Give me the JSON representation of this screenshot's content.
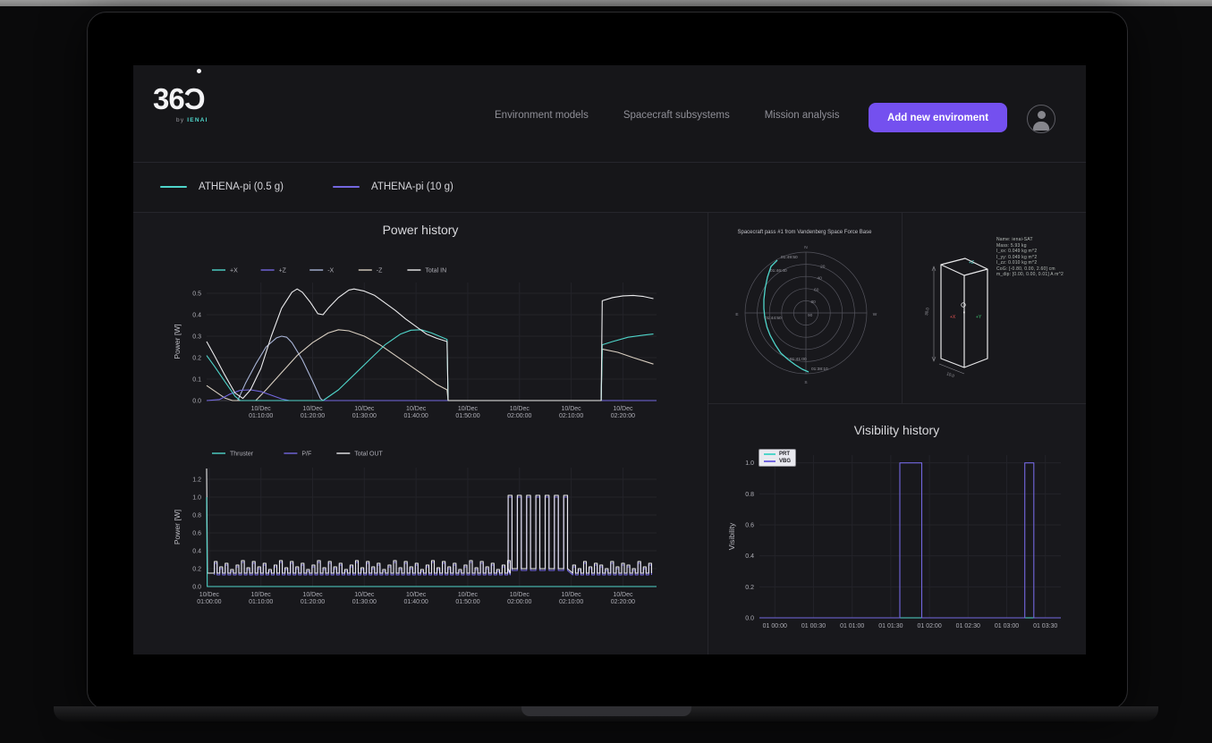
{
  "header": {
    "logo": {
      "text": "36Ɔ",
      "byline_prefix": "by",
      "byline_brand": "IENAI"
    },
    "nav": [
      {
        "label": "Environment models"
      },
      {
        "label": "Spacecraft subsystems"
      },
      {
        "label": "Mission analysis"
      }
    ],
    "add_button_label": "Add new enviroment"
  },
  "colors": {
    "accent_teal": "#4fd5ca",
    "accent_purple": "#7367e0",
    "button_purple": "#7450ef"
  },
  "series_legend": [
    {
      "label": "ATHENA-pi (0.5 g)",
      "color": "#4fd5ca"
    },
    {
      "label": "ATHENA-pi (10 g)",
      "color": "#7367e0"
    }
  ],
  "spacecraft_info": [
    "Name: ienai-SAT",
    "Mass: 5.93 kg",
    "I_xx: 0.049 kg m^2",
    "I_yy: 0.049 kg m^2",
    "I_zz: 0.010 kg m^2",
    "CoG: [-0.80, 0.00, 2.60] cm",
    "m_dip: [0.00, 0.00, 0.01] A m^2"
  ],
  "box_view": {
    "axis_z": "+Z",
    "axis_x": "+X",
    "axis_y": "+Y",
    "dim_height": "30.0",
    "dim_width": "10.0"
  },
  "chart_data": [
    {
      "id": "power_in",
      "type": "line",
      "title": "Power history",
      "ylabel": "Power [W]",
      "xlim": [
        -0.5,
        86.5
      ],
      "ylim": [
        0,
        0.55
      ],
      "yticks": [
        0,
        0.1,
        0.2,
        0.3,
        0.4,
        0.5
      ],
      "xticks": [
        {
          "v": 10,
          "label": [
            "10/Dec",
            "01:10:00"
          ]
        },
        {
          "v": 20,
          "label": [
            "10/Dec",
            "01:20:00"
          ]
        },
        {
          "v": 30,
          "label": [
            "10/Dec",
            "01:30:00"
          ]
        },
        {
          "v": 40,
          "label": [
            "10/Dec",
            "01:40:00"
          ]
        },
        {
          "v": 50,
          "label": [
            "10/Dec",
            "01:50:00"
          ]
        },
        {
          "v": 60,
          "label": [
            "10/Dec",
            "02:00:00"
          ]
        },
        {
          "v": 70,
          "label": [
            "10/Dec",
            "02:10:00"
          ]
        },
        {
          "v": 80,
          "label": [
            "10/Dec",
            "02:20:00"
          ]
        }
      ],
      "legend": [
        {
          "label": "+X",
          "color": "#4fd5ca"
        },
        {
          "label": "+Z",
          "color": "#7367e0"
        },
        {
          "label": "-X",
          "color": "#a8b4d6"
        },
        {
          "label": "-Z",
          "color": "#d8cec0"
        },
        {
          "label": "Total IN",
          "color": "#ebebed"
        }
      ],
      "series": [
        {
          "name": "-X",
          "color": "#a8b4d6",
          "points": [
            [
              5.5,
              0
            ],
            [
              7,
              0.08
            ],
            [
              9,
              0.17
            ],
            [
              11,
              0.25
            ],
            [
              13,
              0.292
            ],
            [
              14,
              0.3
            ],
            [
              15,
              0.295
            ],
            [
              16,
              0.27
            ],
            [
              18,
              0.19
            ],
            [
              20,
              0.09
            ],
            [
              21.5,
              0.01
            ],
            [
              22,
              0
            ]
          ]
        },
        {
          "name": "-Z",
          "color": "#d8cec0",
          "points": [
            [
              -0.5,
              0.07
            ],
            [
              1,
              0.045
            ],
            [
              3,
              0.012
            ],
            [
              4.5,
              0
            ],
            [
              9,
              0
            ],
            [
              11,
              0.05
            ],
            [
              14,
              0.13
            ],
            [
              17,
              0.21
            ],
            [
              20,
              0.27
            ],
            [
              23,
              0.315
            ],
            [
              25,
              0.33
            ],
            [
              27,
              0.325
            ],
            [
              30,
              0.3
            ],
            [
              33,
              0.26
            ],
            [
              36,
              0.21
            ],
            [
              39,
              0.16
            ],
            [
              42,
              0.11
            ],
            [
              44,
              0.075
            ],
            [
              46,
              0.05
            ],
            [
              46.2,
              0
            ],
            [
              75.8,
              0
            ],
            [
              76,
              0.24
            ],
            [
              79,
              0.225
            ],
            [
              82,
              0.2
            ],
            [
              85.9,
              0.17
            ]
          ]
        },
        {
          "name": "+Z",
          "color": "#7367e0",
          "points": [
            [
              -0.5,
              0
            ],
            [
              2,
              0.005
            ],
            [
              4,
              0.03
            ],
            [
              6,
              0.048
            ],
            [
              8,
              0.05
            ],
            [
              10,
              0.042
            ],
            [
              12,
              0.025
            ],
            [
              14,
              0.008
            ],
            [
              15.5,
              0
            ],
            [
              86.5,
              0
            ]
          ]
        },
        {
          "name": "+X",
          "color": "#4fd5ca",
          "points": [
            [
              -0.5,
              0.21
            ],
            [
              1,
              0.16
            ],
            [
              3,
              0.09
            ],
            [
              5,
              0.02
            ],
            [
              6,
              0
            ],
            [
              22,
              0
            ],
            [
              25,
              0.05
            ],
            [
              28,
              0.12
            ],
            [
              31,
              0.19
            ],
            [
              34,
              0.26
            ],
            [
              37,
              0.31
            ],
            [
              39,
              0.328
            ],
            [
              41,
              0.33
            ],
            [
              43,
              0.315
            ],
            [
              45,
              0.295
            ],
            [
              46,
              0.285
            ],
            [
              46.2,
              0
            ],
            [
              75.8,
              0
            ],
            [
              76,
              0.26
            ],
            [
              78,
              0.275
            ],
            [
              81,
              0.295
            ],
            [
              84,
              0.305
            ],
            [
              85.9,
              0.31
            ]
          ]
        },
        {
          "name": "Total IN",
          "color": "#ebebed",
          "points": [
            [
              -0.5,
              0.275
            ],
            [
              1,
              0.21
            ],
            [
              3,
              0.12
            ],
            [
              5,
              0.035
            ],
            [
              6.5,
              0.01
            ],
            [
              8,
              0.05
            ],
            [
              10,
              0.15
            ],
            [
              12,
              0.3
            ],
            [
              14,
              0.43
            ],
            [
              16,
              0.505
            ],
            [
              17,
              0.52
            ],
            [
              18,
              0.505
            ],
            [
              19.5,
              0.46
            ],
            [
              21,
              0.405
            ],
            [
              22,
              0.4
            ],
            [
              23,
              0.43
            ],
            [
              25,
              0.48
            ],
            [
              27,
              0.515
            ],
            [
              28,
              0.52
            ],
            [
              30,
              0.51
            ],
            [
              32,
              0.49
            ],
            [
              34,
              0.455
            ],
            [
              36,
              0.42
            ],
            [
              38,
              0.38
            ],
            [
              40,
              0.345
            ],
            [
              42,
              0.31
            ],
            [
              44,
              0.29
            ],
            [
              46,
              0.275
            ],
            [
              46.2,
              0
            ],
            [
              75.8,
              0
            ],
            [
              76,
              0.465
            ],
            [
              78,
              0.48
            ],
            [
              80,
              0.488
            ],
            [
              82,
              0.49
            ],
            [
              84,
              0.485
            ],
            [
              85.9,
              0.475
            ]
          ]
        }
      ]
    },
    {
      "id": "power_out",
      "type": "line",
      "ylabel": "Power [W]",
      "xlim": [
        -0.5,
        86.5
      ],
      "ylim": [
        0,
        1.33
      ],
      "yticks": [
        0,
        0.2,
        0.4,
        0.6,
        0.8,
        1.0,
        1.2
      ],
      "xticks": [
        {
          "v": 0,
          "label": [
            "10/Dec",
            "01:00:00"
          ]
        },
        {
          "v": 10,
          "label": [
            "10/Dec",
            "01:10:00"
          ]
        },
        {
          "v": 20,
          "label": [
            "10/Dec",
            "01:20:00"
          ]
        },
        {
          "v": 30,
          "label": [
            "10/Dec",
            "01:30:00"
          ]
        },
        {
          "v": 40,
          "label": [
            "10/Dec",
            "01:40:00"
          ]
        },
        {
          "v": 50,
          "label": [
            "10/Dec",
            "01:50:00"
          ]
        },
        {
          "v": 60,
          "label": [
            "10/Dec",
            "02:00:00"
          ]
        },
        {
          "v": 70,
          "label": [
            "10/Dec",
            "02:10:00"
          ]
        },
        {
          "v": 80,
          "label": [
            "10/Dec",
            "02:20:00"
          ]
        }
      ],
      "legend": [
        {
          "label": "Thruster",
          "color": "#4fd5ca"
        },
        {
          "label": "P/F",
          "color": "#7367e0"
        },
        {
          "label": "Total OUT",
          "color": "#ebebed"
        }
      ],
      "series": [
        {
          "name": "P/F",
          "color": "#7367e0",
          "trains": [
            {
              "start": 1,
              "end": 57.8,
              "period": 1.05,
              "duty": 0.5,
              "low": 0.13,
              "highs": [
                0.26,
                0.2,
                0.24,
                0.17,
                0.22,
                0.27,
                0.19
              ]
            },
            {
              "start": 57.8,
              "end": 70.3,
              "period": 1.79,
              "duty": 0.42,
              "low": 0.18,
              "highs": [
                1.0
              ]
            },
            {
              "start": 70.3,
              "end": 85.6,
              "period": 1.05,
              "duty": 0.5,
              "low": 0.13,
              "highs": [
                0.22,
                0.18,
                0.26,
                0.2,
                0.24
              ]
            }
          ]
        },
        {
          "name": "Total OUT",
          "color": "#ebebed",
          "prefix": [
            [
              -0.5,
              1.32
            ],
            [
              -0.35,
              0.15
            ]
          ],
          "trains": [
            {
              "start": 1,
              "end": 57.8,
              "period": 1.05,
              "duty": 0.5,
              "low": 0.15,
              "highs": [
                0.28,
                0.22,
                0.26,
                0.19,
                0.24,
                0.29,
                0.21
              ]
            },
            {
              "start": 57.8,
              "end": 70.3,
              "period": 1.79,
              "duty": 0.42,
              "low": 0.2,
              "highs": [
                1.02
              ]
            },
            {
              "start": 70.3,
              "end": 85.6,
              "period": 1.05,
              "duty": 0.5,
              "low": 0.15,
              "highs": [
                0.24,
                0.2,
                0.28,
                0.22,
                0.26
              ]
            }
          ]
        },
        {
          "name": "Thruster",
          "color": "#4fd5ca",
          "points": [
            [
              -0.5,
              1.0
            ],
            [
              -0.38,
              0
            ],
            [
              86.5,
              0
            ]
          ]
        }
      ]
    },
    {
      "id": "pass_polar",
      "type": "polar_track",
      "title": "Spacecraft pass #1 from Vandenberg Space Force Base",
      "compass": {
        "top": "N",
        "right": "W",
        "bottom": "S",
        "left": "E"
      },
      "rings": [
        {
          "f": 0.8,
          "label": "20"
        },
        {
          "f": 0.6,
          "label": "40"
        },
        {
          "f": 0.4,
          "label": "60"
        },
        {
          "f": 0.2,
          "label": "80"
        }
      ],
      "center_label": "90",
      "track_color": "#4fd5ca",
      "track": [
        [
          -32,
          -59
        ],
        [
          -39,
          -52
        ],
        [
          -43,
          -40
        ],
        [
          -45.5,
          -28
        ],
        [
          -47,
          -15
        ],
        [
          -47,
          -5
        ],
        [
          -46,
          5
        ],
        [
          -43.5,
          16
        ],
        [
          -40,
          25
        ],
        [
          -34,
          36
        ],
        [
          -28,
          45
        ],
        [
          -20,
          52
        ],
        [
          -12,
          58
        ],
        [
          -4,
          63
        ],
        [
          3,
          66
        ]
      ],
      "annotations": [
        {
          "label": "01:49:50",
          "x": -28,
          "y": -61
        },
        {
          "label": "01:46:40",
          "x": -40,
          "y": -46
        },
        {
          "label": "01:44:50",
          "x": -46,
          "y": 7
        },
        {
          "label": "01:41:00",
          "x": -18,
          "y": 53
        },
        {
          "label": "01:38:10",
          "x": 6,
          "y": 64
        }
      ]
    },
    {
      "id": "visibility",
      "type": "line",
      "title": "Visibility history",
      "ylabel": "Visibility",
      "xlim": [
        -12,
        222
      ],
      "ylim": [
        0,
        1.05
      ],
      "yticks": [
        0,
        0.2,
        0.4,
        0.6,
        0.8,
        1.0
      ],
      "xticks": [
        {
          "v": 0,
          "label": "01 00:00"
        },
        {
          "v": 30,
          "label": "01 00:30"
        },
        {
          "v": 60,
          "label": "01 01:00"
        },
        {
          "v": 90,
          "label": "01 01:30"
        },
        {
          "v": 120,
          "label": "01 02:00"
        },
        {
          "v": 150,
          "label": "01 02:30"
        },
        {
          "v": 180,
          "label": "01 03:00"
        },
        {
          "v": 210,
          "label": "01 03:30"
        }
      ],
      "legend_box": [
        {
          "label": "PRT",
          "color": "#4fd5ca"
        },
        {
          "label": "VBG",
          "color": "#7367e0"
        }
      ],
      "series": [
        {
          "name": "PRT",
          "color": "#4fd5ca",
          "points": [
            [
              -12,
              0
            ],
            [
              222,
              0
            ]
          ]
        },
        {
          "name": "VBG",
          "color": "#7367e0",
          "points": [
            [
              -12,
              0
            ],
            [
              97,
              0
            ],
            [
              97,
              1
            ],
            [
              114,
              1
            ],
            [
              114,
              0
            ],
            [
              194,
              0
            ],
            [
              194,
              1
            ],
            [
              201,
              1
            ],
            [
              201,
              0
            ],
            [
              222,
              0
            ]
          ]
        }
      ]
    }
  ]
}
